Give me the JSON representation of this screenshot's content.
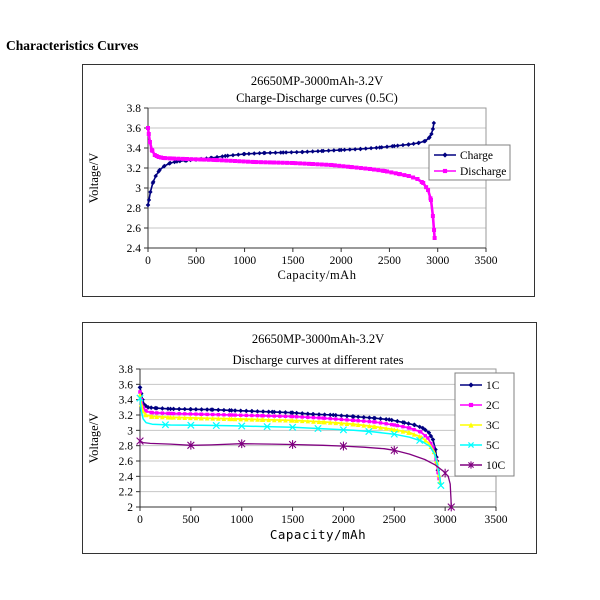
{
  "page": {
    "heading": "Characteristics Curves"
  },
  "chart_data": [
    {
      "type": "line",
      "title": "26650MP-3000mAh-3.2V",
      "subtitle": "Charge-Discharge curves (0.5C)",
      "xlabel": "Capacity/mAh",
      "ylabel": "Voltage/V",
      "xlim": [
        0,
        3500
      ],
      "ylim": [
        2.4,
        3.8
      ],
      "x_ticks": [
        "0",
        "500",
        "1000",
        "1500",
        "2000",
        "2500",
        "3000",
        "3500"
      ],
      "y_ticks": [
        "3.8",
        "3.6",
        "3.4",
        "3.2",
        "3",
        "2.8",
        "2.6",
        "2.4"
      ],
      "grid": "horizontal",
      "grid_color": "#c6c6c6",
      "axis_color": "#333333",
      "plot_border_color": "#999999",
      "legend_position": "inside-right",
      "series": [
        {
          "name": "Charge",
          "color": "#000080",
          "marker": "diamond",
          "marker_every": 55,
          "marker_size": 2.2,
          "marker_at_points": true,
          "line_width": 1.6,
          "points": [
            [
              0,
              2.83
            ],
            [
              10,
              2.88
            ],
            [
              25,
              2.96
            ],
            [
              50,
              3.05
            ],
            [
              80,
              3.12
            ],
            [
              120,
              3.18
            ],
            [
              170,
              3.22
            ],
            [
              230,
              3.25
            ],
            [
              300,
              3.265
            ],
            [
              400,
              3.275
            ],
            [
              500,
              3.285
            ],
            [
              650,
              3.3
            ],
            [
              800,
              3.32
            ],
            [
              1000,
              3.34
            ],
            [
              1200,
              3.35
            ],
            [
              1400,
              3.355
            ],
            [
              1600,
              3.36
            ],
            [
              1800,
              3.37
            ],
            [
              2000,
              3.38
            ],
            [
              2200,
              3.39
            ],
            [
              2400,
              3.405
            ],
            [
              2550,
              3.42
            ],
            [
              2700,
              3.435
            ],
            [
              2800,
              3.45
            ],
            [
              2870,
              3.47
            ],
            [
              2910,
              3.5
            ],
            [
              2935,
              3.54
            ],
            [
              2950,
              3.59
            ],
            [
              2960,
              3.65
            ]
          ]
        },
        {
          "name": "Discharge",
          "color": "#FF00FF",
          "marker": "square",
          "marker_every": 45,
          "marker_size": 2.5,
          "marker_at_points": true,
          "line_width": 2.6,
          "points": [
            [
              0,
              3.6
            ],
            [
              8,
              3.54
            ],
            [
              20,
              3.46
            ],
            [
              40,
              3.38
            ],
            [
              70,
              3.33
            ],
            [
              110,
              3.31
            ],
            [
              160,
              3.3
            ],
            [
              250,
              3.295
            ],
            [
              400,
              3.29
            ],
            [
              550,
              3.285
            ],
            [
              700,
              3.28
            ],
            [
              900,
              3.27
            ],
            [
              1100,
              3.26
            ],
            [
              1300,
              3.255
            ],
            [
              1500,
              3.25
            ],
            [
              1700,
              3.24
            ],
            [
              1900,
              3.23
            ],
            [
              2100,
              3.21
            ],
            [
              2300,
              3.19
            ],
            [
              2450,
              3.17
            ],
            [
              2600,
              3.14
            ],
            [
              2700,
              3.12
            ],
            [
              2790,
              3.09
            ],
            [
              2850,
              3.05
            ],
            [
              2900,
              2.98
            ],
            [
              2930,
              2.88
            ],
            [
              2950,
              2.72
            ],
            [
              2962,
              2.58
            ],
            [
              2968,
              2.5
            ]
          ]
        }
      ]
    },
    {
      "type": "line",
      "title": "26650MP-3000mAh-3.2V",
      "subtitle": "Discharge curves at different rates",
      "xlabel": "Capacity/mAh",
      "ylabel": "Voltage/V",
      "xlim": [
        0,
        3500
      ],
      "ylim": [
        2.0,
        3.8
      ],
      "x_ticks": [
        "0",
        "500",
        "1000",
        "1500",
        "2000",
        "2500",
        "3000",
        "3500"
      ],
      "y_ticks": [
        "3.8",
        "3.6",
        "3.4",
        "3.2",
        "3",
        "2.8",
        "2.6",
        "2.4",
        "2.2",
        "2"
      ],
      "grid": "horizontal",
      "grid_color": "#c6c6c6",
      "axis_color": "#333333",
      "plot_border_color": "#999999",
      "legend_position": "inside-right",
      "series": [
        {
          "name": "1C",
          "color": "#000080",
          "marker": "diamond",
          "marker_every": 55,
          "marker_size": 2.3,
          "marker_at_points": true,
          "line_width": 1.6,
          "points": [
            [
              0,
              3.56
            ],
            [
              12,
              3.48
            ],
            [
              25,
              3.4
            ],
            [
              45,
              3.33
            ],
            [
              80,
              3.3
            ],
            [
              150,
              3.29
            ],
            [
              300,
              3.28
            ],
            [
              500,
              3.275
            ],
            [
              700,
              3.27
            ],
            [
              900,
              3.26
            ],
            [
              1100,
              3.25
            ],
            [
              1300,
              3.24
            ],
            [
              1500,
              3.23
            ],
            [
              1700,
              3.21
            ],
            [
              1900,
              3.2
            ],
            [
              2100,
              3.18
            ],
            [
              2300,
              3.16
            ],
            [
              2450,
              3.14
            ],
            [
              2600,
              3.1
            ],
            [
              2700,
              3.07
            ],
            [
              2780,
              3.03
            ],
            [
              2840,
              2.97
            ],
            [
              2880,
              2.88
            ],
            [
              2905,
              2.75
            ],
            [
              2920,
              2.6
            ],
            [
              2928,
              2.48
            ]
          ]
        },
        {
          "name": "2C",
          "color": "#FF00FF",
          "marker": "square",
          "marker_every": 55,
          "marker_size": 2.1,
          "marker_at_points": true,
          "line_width": 1.8,
          "points": [
            [
              0,
              3.5
            ],
            [
              12,
              3.4
            ],
            [
              30,
              3.3
            ],
            [
              60,
              3.25
            ],
            [
              120,
              3.23
            ],
            [
              300,
              3.22
            ],
            [
              600,
              3.21
            ],
            [
              900,
              3.2
            ],
            [
              1200,
              3.19
            ],
            [
              1500,
              3.18
            ],
            [
              1800,
              3.16
            ],
            [
              2100,
              3.13
            ],
            [
              2300,
              3.11
            ],
            [
              2500,
              3.07
            ],
            [
              2650,
              3.03
            ],
            [
              2760,
              2.98
            ],
            [
              2830,
              2.9
            ],
            [
              2880,
              2.78
            ],
            [
              2910,
              2.62
            ],
            [
              2930,
              2.45
            ],
            [
              2940,
              2.37
            ]
          ]
        },
        {
          "name": "3C",
          "color": "#FFFF00",
          "marker": "triangle",
          "marker_every": 55,
          "marker_size": 2.3,
          "marker_at_points": true,
          "line_width": 1.8,
          "points": [
            [
              0,
              3.46
            ],
            [
              12,
              3.34
            ],
            [
              30,
              3.25
            ],
            [
              60,
              3.2
            ],
            [
              120,
              3.18
            ],
            [
              300,
              3.17
            ],
            [
              600,
              3.16
            ],
            [
              900,
              3.15
            ],
            [
              1200,
              3.14
            ],
            [
              1500,
              3.13
            ],
            [
              1800,
              3.11
            ],
            [
              2100,
              3.08
            ],
            [
              2300,
              3.05
            ],
            [
              2500,
              3.01
            ],
            [
              2650,
              2.97
            ],
            [
              2770,
              2.91
            ],
            [
              2840,
              2.83
            ],
            [
              2890,
              2.72
            ],
            [
              2920,
              2.58
            ],
            [
              2940,
              2.42
            ],
            [
              2948,
              2.33
            ]
          ]
        },
        {
          "name": "5C",
          "color": "#00FFFF",
          "marker": "x",
          "marker_every": 250,
          "marker_size": 3.2,
          "marker_at_points": false,
          "line_width": 1.5,
          "points": [
            [
              0,
              3.42
            ],
            [
              12,
              3.26
            ],
            [
              30,
              3.15
            ],
            [
              60,
              3.1
            ],
            [
              120,
              3.08
            ],
            [
              300,
              3.07
            ],
            [
              600,
              3.065
            ],
            [
              900,
              3.06
            ],
            [
              1200,
              3.05
            ],
            [
              1500,
              3.04
            ],
            [
              1800,
              3.02
            ],
            [
              2100,
              3.0
            ],
            [
              2300,
              2.98
            ],
            [
              2500,
              2.95
            ],
            [
              2650,
              2.91
            ],
            [
              2770,
              2.86
            ],
            [
              2850,
              2.79
            ],
            [
              2900,
              2.68
            ],
            [
              2930,
              2.52
            ],
            [
              2950,
              2.36
            ],
            [
              2958,
              2.28
            ]
          ]
        },
        {
          "name": "10C",
          "color": "#800080",
          "marker": "star",
          "marker_every": 500,
          "marker_size": 3.4,
          "marker_at_points": false,
          "line_width": 1.3,
          "points": [
            [
              0,
              2.86
            ],
            [
              30,
              2.84
            ],
            [
              100,
              2.83
            ],
            [
              300,
              2.82
            ],
            [
              500,
              2.805
            ],
            [
              700,
              2.81
            ],
            [
              1000,
              2.825
            ],
            [
              1300,
              2.82
            ],
            [
              1500,
              2.815
            ],
            [
              1800,
              2.805
            ],
            [
              2000,
              2.795
            ],
            [
              2200,
              2.78
            ],
            [
              2400,
              2.76
            ],
            [
              2500,
              2.74
            ],
            [
              2650,
              2.69
            ],
            [
              2800,
              2.62
            ],
            [
              2900,
              2.55
            ],
            [
              2980,
              2.47
            ],
            [
              3030,
              2.4
            ],
            [
              3050,
              2.3
            ],
            [
              3058,
              2.1
            ],
            [
              3060,
              2.0
            ]
          ]
        }
      ]
    }
  ]
}
